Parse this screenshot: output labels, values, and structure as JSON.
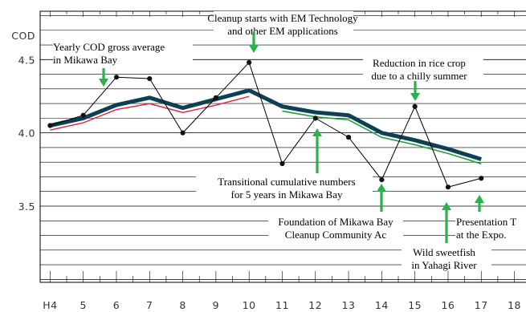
{
  "chart_data": {
    "type": "line",
    "ylabel": "COD",
    "x": [
      4,
      5,
      6,
      7,
      8,
      9,
      10,
      11,
      12,
      13,
      14,
      15,
      16,
      17,
      18
    ],
    "x_tick_labels": [
      "H4",
      "5",
      "6",
      "7",
      "8",
      "9",
      "10",
      "11",
      "12",
      "13",
      "14",
      "15",
      "16",
      "17",
      "18"
    ],
    "y_tick_labels": [
      "4.5",
      "4.0",
      "3.5"
    ],
    "y_ticks": [
      4.5,
      4.0,
      3.5
    ],
    "ylim": [
      2.98,
      4.83
    ],
    "xlim": [
      3.7,
      18.35
    ],
    "grid": true,
    "series": [
      {
        "x": [
          4,
          5,
          6,
          7,
          8,
          9,
          10,
          11,
          12,
          13,
          14,
          15,
          16,
          17
        ],
        "values": [
          4.05,
          4.12,
          4.38,
          4.37,
          4.0,
          4.24,
          4.48,
          3.79,
          4.1,
          3.97,
          3.68,
          4.18,
          3.63,
          3.69
        ],
        "color": "#000000",
        "style": "thin-with-markers"
      },
      {
        "x": [
          4,
          5,
          6,
          7,
          8,
          9,
          10
        ],
        "values": [
          4.03,
          4.08,
          4.17,
          4.21,
          4.15,
          4.2,
          4.26
        ],
        "color": "#e8203a",
        "style": "thin"
      },
      {
        "x": [
          11,
          12,
          13,
          14,
          15,
          16,
          17
        ],
        "values": [
          4.16,
          4.12,
          4.1,
          3.98,
          3.93,
          3.87,
          3.8
        ],
        "color": "#1aa33a",
        "style": "thin"
      },
      {
        "x": [
          4,
          5,
          6,
          7,
          8,
          9,
          10,
          11,
          12,
          13,
          14,
          15,
          16,
          17
        ],
        "values": [
          4.05,
          4.1,
          4.19,
          4.24,
          4.17,
          4.23,
          4.29,
          4.18,
          4.14,
          4.12,
          4.0,
          3.95,
          3.89,
          3.82
        ],
        "color": "#0d3f55",
        "style": "thick"
      }
    ],
    "annotations": [
      {
        "lines": [
          "Yearly COD gross average",
          "in Mikawa Bay"
        ]
      },
      {
        "lines": [
          "Cleanup starts with EM Technology",
          "and other EM applications"
        ]
      },
      {
        "lines": [
          "Reduction in rice crop",
          "due to a chilly summer"
        ]
      },
      {
        "lines": [
          "Transitional cumulative numbers",
          "for 5 years in Mikawa Bay"
        ]
      },
      {
        "lines": [
          "Foundation of Mikawa Bay",
          "Cleanup Community Ac"
        ]
      },
      {
        "lines": [
          "Wild sweetfish",
          "in Yahagi River"
        ]
      },
      {
        "lines": [
          "Presentation T",
          "at the Expo."
        ]
      }
    ]
  }
}
